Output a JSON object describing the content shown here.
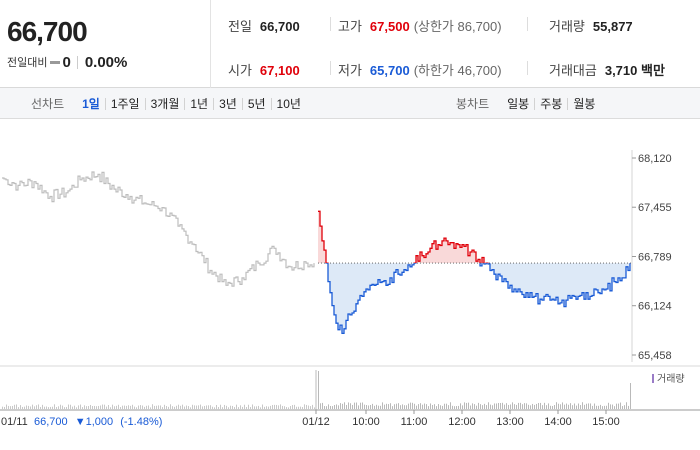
{
  "quote": {
    "price": "66,700",
    "change_label": "전일대비",
    "change": "0",
    "change_pct": "0.00%"
  },
  "stats": {
    "prev_close": {
      "label": "전일",
      "value": "66,700"
    },
    "high": {
      "label": "고가",
      "value": "67,500",
      "note": "(상한가 86,700)"
    },
    "volume": {
      "label": "거래량",
      "value": "55,877"
    },
    "open": {
      "label": "시가",
      "value": "67,100"
    },
    "low": {
      "label": "저가",
      "value": "65,700",
      "note": "(하한가 46,700)"
    },
    "trade_value": {
      "label": "거래대금",
      "value": "3,710 백만"
    }
  },
  "period_bar": {
    "line_label": "선차트",
    "periods": [
      "1일",
      "1주일",
      "3개월",
      "1년",
      "3년",
      "5년",
      "10년"
    ],
    "active_period": "1일",
    "candle_label": "봉차트",
    "candles": [
      "일봉",
      "주봉",
      "월봉"
    ]
  },
  "colors": {
    "up": "#e0000a",
    "down": "#1a5bd6",
    "prev_day": "#bdbdbd",
    "fill_below": "#dde9f7",
    "fill_above": "#f9d9d9",
    "volume": "#c8c8c8",
    "volume_today": "#b9b9b9"
  },
  "chart_data": {
    "type": "line",
    "reference_price": 66700,
    "y_ticks": [
      "68,120",
      "67,455",
      "66,789",
      "66,124",
      "65,458"
    ],
    "ylim": [
      65458,
      68120
    ],
    "grid": false,
    "x_ticks": [
      "01/11",
      "01/12",
      "10:00",
      "11:00",
      "12:00",
      "13:00",
      "14:00",
      "15:00"
    ],
    "prev_day_label": {
      "date": "01/11",
      "price": "66,700",
      "change": "▼1,000",
      "pct": "(-1.48%)"
    },
    "volume_legend": "거래량",
    "series": [
      {
        "name": "01/11",
        "x": [
          "09:00",
          "09:20",
          "09:40",
          "10:00",
          "10:20",
          "10:40",
          "11:00",
          "11:20",
          "11:40",
          "12:00",
          "12:20",
          "12:40",
          "13:00",
          "13:20",
          "13:40",
          "14:00",
          "14:20",
          "14:40",
          "15:00",
          "15:20",
          "15:30"
        ],
        "values": [
          67850,
          67750,
          67800,
          67600,
          67650,
          67850,
          67900,
          67700,
          67600,
          67500,
          67450,
          67200,
          66950,
          66600,
          66400,
          66500,
          66700,
          66900,
          66650,
          66700,
          66700
        ]
      },
      {
        "name": "01/12",
        "x": [
          "09:00",
          "09:05",
          "09:10",
          "09:15",
          "09:20",
          "09:30",
          "09:40",
          "09:50",
          "10:00",
          "10:10",
          "10:20",
          "10:30",
          "10:40",
          "10:50",
          "11:00",
          "11:10",
          "11:20",
          "11:30",
          "11:40",
          "11:50",
          "12:00",
          "12:10",
          "12:20",
          "12:30",
          "12:40",
          "12:50",
          "13:00",
          "13:10",
          "13:20",
          "13:30",
          "13:40",
          "13:50",
          "14:00",
          "14:10",
          "14:20",
          "14:30",
          "14:40",
          "14:50",
          "15:00",
          "15:10",
          "15:20",
          "15:30"
        ],
        "values": [
          67400,
          67000,
          66700,
          66300,
          66000,
          65750,
          66000,
          66200,
          66350,
          66400,
          66450,
          66500,
          66550,
          66600,
          66700,
          66800,
          66900,
          66950,
          67000,
          66900,
          66950,
          66850,
          66750,
          66700,
          66550,
          66450,
          66400,
          66350,
          66300,
          66250,
          66200,
          66200,
          66150,
          66200,
          66250,
          66300,
          66250,
          66300,
          66350,
          66450,
          66500,
          66700
        ]
      }
    ],
    "volume": {
      "prev_day_level": 0.08,
      "today_open_spike": 0.95,
      "today_level": 0.12,
      "today_close_spike": 0.65
    }
  }
}
